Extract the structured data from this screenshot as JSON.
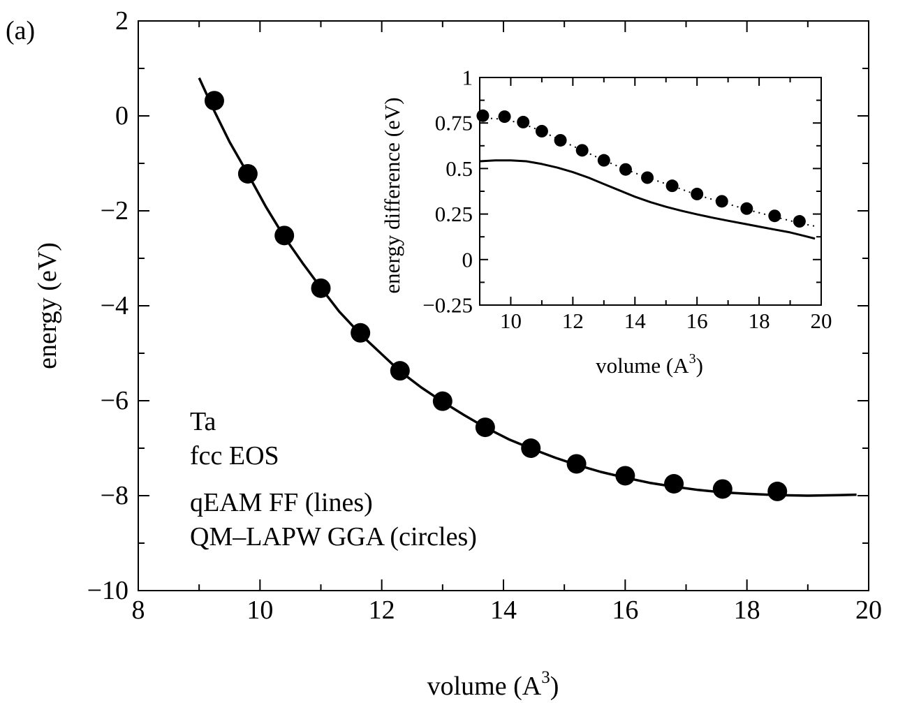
{
  "panel_label": "(a)",
  "annotations": [
    "Ta",
    "fcc EOS",
    "qEAM FF (lines)",
    "QM–LAPW GGA (circles)"
  ],
  "colors": {
    "ink": "#000000",
    "background": "#ffffff"
  },
  "chart_data": [
    {
      "id": "main",
      "type": "scatter",
      "xlabel": "volume (A",
      "xlabel_sup": "3",
      "xlabel_end": ")",
      "ylabel": "energy (eV)",
      "xlim": [
        8,
        20
      ],
      "ylim": [
        -10,
        2
      ],
      "xticks": [
        8,
        10,
        12,
        14,
        16,
        18,
        20
      ],
      "xtick_labels": [
        "8",
        "10",
        "12",
        "14",
        "16",
        "18",
        "20"
      ],
      "yticks": [
        -10,
        -8,
        -6,
        -4,
        -2,
        0,
        2
      ],
      "ytick_labels": [
        "−10",
        "−8",
        "−6",
        "−4",
        "−2",
        "0",
        "2"
      ],
      "grid": false,
      "series": [
        {
          "style": "solid-line",
          "x": [
            9.0,
            9.25,
            9.5,
            9.8,
            10.1,
            10.4,
            10.7,
            11.0,
            11.3,
            11.65,
            12.0,
            12.3,
            12.65,
            13.0,
            13.35,
            13.7,
            14.1,
            14.5,
            14.85,
            15.2,
            15.6,
            16.0,
            16.4,
            16.8,
            17.2,
            17.6,
            18.0,
            18.5,
            19.0,
            19.5,
            19.8
          ],
          "y": [
            0.8,
            0.1,
            -0.55,
            -1.22,
            -1.92,
            -2.55,
            -3.1,
            -3.62,
            -4.12,
            -4.6,
            -5.02,
            -5.38,
            -5.72,
            -6.02,
            -6.3,
            -6.56,
            -6.82,
            -7.03,
            -7.2,
            -7.35,
            -7.5,
            -7.62,
            -7.73,
            -7.81,
            -7.88,
            -7.93,
            -7.96,
            -7.99,
            -8.0,
            -7.99,
            -7.98
          ]
        },
        {
          "style": "filled-circles",
          "x": [
            9.25,
            9.8,
            10.4,
            11.0,
            11.65,
            12.3,
            13.0,
            13.7,
            14.45,
            15.2,
            16.0,
            16.8,
            17.6,
            18.5
          ],
          "y": [
            0.32,
            -1.22,
            -2.52,
            -3.63,
            -4.57,
            -5.37,
            -6.01,
            -6.56,
            -7.0,
            -7.33,
            -7.58,
            -7.75,
            -7.86,
            -7.91
          ]
        }
      ]
    },
    {
      "id": "inset",
      "type": "scatter",
      "xlabel": "volume (A",
      "xlabel_sup": "3",
      "xlabel_end": ")",
      "ylabel": "energy difference (eV)",
      "xlim": [
        9,
        20
      ],
      "ylim": [
        -0.25,
        1
      ],
      "xticks": [
        10,
        12,
        14,
        16,
        18,
        20
      ],
      "xtick_labels": [
        "10",
        "12",
        "14",
        "16",
        "18",
        "20"
      ],
      "yticks": [
        -0.25,
        0,
        0.25,
        0.5,
        0.75,
        1
      ],
      "ytick_labels": [
        "−0.25",
        "0",
        "0.25",
        "0.5",
        "0.75",
        "1"
      ],
      "grid": false,
      "series": [
        {
          "style": "solid-line",
          "x": [
            9.0,
            9.5,
            10.0,
            10.5,
            11.0,
            11.5,
            12.0,
            12.5,
            13.0,
            13.5,
            14.0,
            14.5,
            15.0,
            15.5,
            16.0,
            16.5,
            17.0,
            17.5,
            18.0,
            18.5,
            19.0,
            19.5,
            19.8
          ],
          "y": [
            0.54,
            0.545,
            0.545,
            0.54,
            0.525,
            0.505,
            0.48,
            0.45,
            0.415,
            0.38,
            0.345,
            0.315,
            0.29,
            0.268,
            0.248,
            0.23,
            0.213,
            0.197,
            0.181,
            0.165,
            0.149,
            0.128,
            0.115
          ]
        },
        {
          "style": "dotted-line",
          "x": [
            9.0,
            9.8,
            10.4,
            11.0,
            11.6,
            12.3,
            13.0,
            13.7,
            14.4,
            15.2,
            16.0,
            16.8,
            17.6,
            18.5,
            19.3,
            19.9
          ],
          "y": [
            0.78,
            0.77,
            0.745,
            0.705,
            0.655,
            0.6,
            0.545,
            0.495,
            0.45,
            0.405,
            0.355,
            0.315,
            0.275,
            0.235,
            0.2,
            0.18
          ]
        },
        {
          "style": "filled-circles",
          "x": [
            9.1,
            9.8,
            10.4,
            11.0,
            11.6,
            12.3,
            13.0,
            13.7,
            14.4,
            15.2,
            16.0,
            16.8,
            17.6,
            18.5,
            19.3
          ],
          "y": [
            0.79,
            0.785,
            0.755,
            0.705,
            0.655,
            0.6,
            0.545,
            0.495,
            0.45,
            0.405,
            0.36,
            0.32,
            0.28,
            0.24,
            0.21
          ]
        }
      ]
    }
  ]
}
